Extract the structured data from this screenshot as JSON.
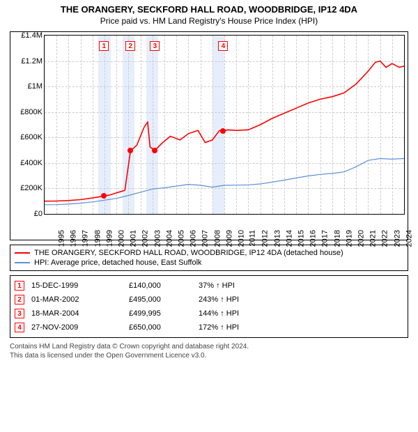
{
  "title": {
    "line1": "THE ORANGERY, SECKFORD HALL ROAD, WOODBRIDGE, IP12 4DA",
    "line2": "Price paid vs. HM Land Registry's House Price Index (HPI)"
  },
  "chart": {
    "type": "line",
    "background_color": "#ffffff",
    "grid_color": "#cccccc",
    "axis_color": "#000000",
    "x": {
      "min": 1995,
      "max": 2025,
      "tick_step": 1
    },
    "y": {
      "min": 0,
      "max": 1400000,
      "tick_step": 200000,
      "tick_labels": [
        "£0",
        "£200K",
        "£400K",
        "£600K",
        "£800K",
        "£1M",
        "£1.2M",
        "£1.4M"
      ]
    },
    "shaded_bands": [
      {
        "from": 1999.5,
        "to": 2000.5
      },
      {
        "from": 2001.5,
        "to": 2002.5
      },
      {
        "from": 2003.5,
        "to": 2004.5
      },
      {
        "from": 2009.0,
        "to": 2010.0
      }
    ],
    "shade_color": "#e6eefc",
    "series": [
      {
        "id": "property",
        "label": "THE ORANGERY, SECKFORD HALL ROAD, WOODBRIDGE, IP12 4DA (detached house)",
        "color": "#ff0000",
        "line_width": 1.6,
        "points": [
          [
            1995.0,
            100000
          ],
          [
            1996.0,
            101000
          ],
          [
            1997.0,
            105000
          ],
          [
            1998.0,
            112000
          ],
          [
            1999.0,
            125000
          ],
          [
            1999.96,
            140000
          ],
          [
            2000.5,
            150000
          ],
          [
            2001.0,
            165000
          ],
          [
            2001.7,
            185000
          ],
          [
            2002.17,
            495000
          ],
          [
            2002.7,
            540000
          ],
          [
            2003.3,
            680000
          ],
          [
            2003.6,
            720000
          ],
          [
            2003.8,
            525000
          ],
          [
            2004.21,
            499995
          ],
          [
            2004.8,
            555000
          ],
          [
            2005.5,
            610000
          ],
          [
            2006.3,
            580000
          ],
          [
            2007.0,
            630000
          ],
          [
            2007.8,
            655000
          ],
          [
            2008.4,
            560000
          ],
          [
            2009.0,
            580000
          ],
          [
            2009.6,
            655000
          ],
          [
            2009.91,
            650000
          ],
          [
            2010.3,
            660000
          ],
          [
            2011.0,
            655000
          ],
          [
            2012.0,
            660000
          ],
          [
            2013.0,
            700000
          ],
          [
            2014.0,
            750000
          ],
          [
            2015.0,
            790000
          ],
          [
            2016.0,
            830000
          ],
          [
            2017.0,
            870000
          ],
          [
            2018.0,
            900000
          ],
          [
            2019.0,
            920000
          ],
          [
            2020.0,
            950000
          ],
          [
            2021.0,
            1020000
          ],
          [
            2022.0,
            1120000
          ],
          [
            2022.6,
            1190000
          ],
          [
            2023.0,
            1200000
          ],
          [
            2023.5,
            1150000
          ],
          [
            2024.0,
            1180000
          ],
          [
            2024.6,
            1150000
          ],
          [
            2025.0,
            1160000
          ]
        ]
      },
      {
        "id": "hpi",
        "label": "HPI: Average price, detached house, East Suffolk",
        "color": "#5b8fd6",
        "line_width": 1.2,
        "points": [
          [
            1995.0,
            72000
          ],
          [
            1996.0,
            73000
          ],
          [
            1997.0,
            77000
          ],
          [
            1998.0,
            84000
          ],
          [
            1999.0,
            94000
          ],
          [
            2000.0,
            108000
          ],
          [
            2001.0,
            122000
          ],
          [
            2002.0,
            145000
          ],
          [
            2003.0,
            170000
          ],
          [
            2004.0,
            195000
          ],
          [
            2005.0,
            205000
          ],
          [
            2006.0,
            218000
          ],
          [
            2007.0,
            232000
          ],
          [
            2008.0,
            225000
          ],
          [
            2009.0,
            210000
          ],
          [
            2010.0,
            225000
          ],
          [
            2011.0,
            226000
          ],
          [
            2012.0,
            228000
          ],
          [
            2013.0,
            235000
          ],
          [
            2014.0,
            250000
          ],
          [
            2015.0,
            265000
          ],
          [
            2016.0,
            282000
          ],
          [
            2017.0,
            298000
          ],
          [
            2018.0,
            310000
          ],
          [
            2019.0,
            318000
          ],
          [
            2020.0,
            330000
          ],
          [
            2021.0,
            370000
          ],
          [
            2022.0,
            420000
          ],
          [
            2023.0,
            435000
          ],
          [
            2024.0,
            430000
          ],
          [
            2025.0,
            435000
          ]
        ]
      }
    ],
    "sale_markers": [
      {
        "n": "1",
        "x": 1999.96,
        "y": 140000,
        "label_x": 1999.96,
        "label_y_top": 8
      },
      {
        "n": "2",
        "x": 2002.17,
        "y": 495000,
        "label_x": 2002.17,
        "label_y_top": 8
      },
      {
        "n": "3",
        "x": 2004.21,
        "y": 499995,
        "label_x": 2004.21,
        "label_y_top": 8
      },
      {
        "n": "4",
        "x": 2009.91,
        "y": 650000,
        "label_x": 2009.91,
        "label_y_top": 8
      }
    ]
  },
  "sales_table": {
    "arrow": "↑",
    "suffix": "HPI",
    "rows": [
      {
        "n": "1",
        "date": "15-DEC-1999",
        "price": "£140,000",
        "pct": "37%"
      },
      {
        "n": "2",
        "date": "01-MAR-2002",
        "price": "£495,000",
        "pct": "243%"
      },
      {
        "n": "3",
        "date": "18-MAR-2004",
        "price": "£499,995",
        "pct": "144%"
      },
      {
        "n": "4",
        "date": "27-NOV-2009",
        "price": "£650,000",
        "pct": "172%"
      }
    ]
  },
  "footer": {
    "line1": "Contains HM Land Registry data © Crown copyright and database right 2024.",
    "line2": "This data is licensed under the Open Government Licence v3.0."
  }
}
